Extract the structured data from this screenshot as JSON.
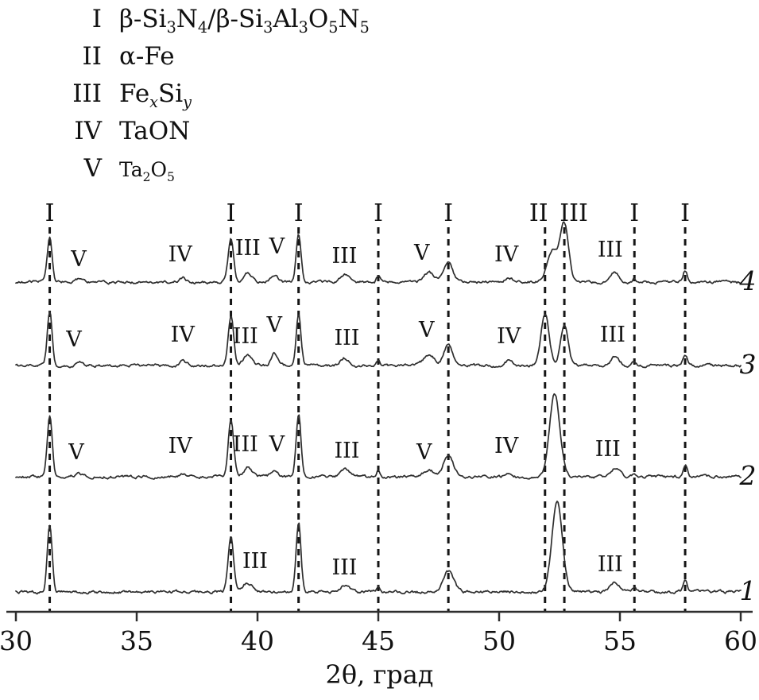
{
  "figure": {
    "legend": [
      {
        "numeral": "I",
        "formula_html": "β-Si<sub>3</sub>N<sub>4</sub>/β-Si<sub>3</sub>Al<sub>3</sub>O<sub>5</sub>N<sub>5</sub>"
      },
      {
        "numeral": "II",
        "formula_html": "α-Fe"
      },
      {
        "numeral": "III",
        "formula_html": "Fe<sub><i>x</i></sub>Si<sub><i>y</i></sub>"
      },
      {
        "numeral": "IV",
        "formula_html": "TaON"
      },
      {
        "numeral": "V",
        "formula_html": "Ta<sub>2</sub>O<sub>5</sub>"
      }
    ]
  },
  "chart_data": {
    "type": "line",
    "title": "",
    "xlabel": "2θ, град",
    "ylabel": "",
    "x_range": [
      30,
      60
    ],
    "x_ticks": [
      30,
      35,
      40,
      45,
      50,
      55,
      60
    ],
    "grid": false,
    "legend_position": "top-left",
    "y_axis_note": "intensity, arb. units; diffractograms 1-4 offset vertically",
    "reference_lines": [
      {
        "x": 31.4,
        "phase": "I",
        "label_dx": 0
      },
      {
        "x": 38.9,
        "phase": "I",
        "label_dx": 0
      },
      {
        "x": 41.7,
        "phase": "I",
        "label_dx": 0
      },
      {
        "x": 45.0,
        "phase": "I",
        "label_dx": 0
      },
      {
        "x": 47.9,
        "phase": "I",
        "label_dx": 0
      },
      {
        "x": 51.9,
        "phase": "II",
        "label_dx": -8
      },
      {
        "x": 52.7,
        "phase": "III",
        "label_dx": 12
      },
      {
        "x": 55.6,
        "phase": "I",
        "label_dx": 0
      },
      {
        "x": 57.7,
        "phase": "I",
        "label_dx": 0
      }
    ],
    "series": [
      {
        "name": "1",
        "offset": 25,
        "peaks": [
          {
            "x": 31.4,
            "h": 85,
            "w": 0.14
          },
          {
            "x": 38.9,
            "h": 70,
            "w": 0.16
          },
          {
            "x": 39.6,
            "h": 12,
            "w": 0.3
          },
          {
            "x": 41.7,
            "h": 88,
            "w": 0.14
          },
          {
            "x": 43.6,
            "h": 9,
            "w": 0.25
          },
          {
            "x": 45.0,
            "h": 8,
            "w": 0.1
          },
          {
            "x": 47.9,
            "h": 26,
            "w": 0.3
          },
          {
            "x": 52.4,
            "h": 112,
            "w": 0.3
          },
          {
            "x": 54.8,
            "h": 12,
            "w": 0.25
          },
          {
            "x": 55.6,
            "h": 5,
            "w": 0.1
          },
          {
            "x": 57.7,
            "h": 16,
            "w": 0.12
          }
        ],
        "annotations": [
          {
            "label": "III",
            "x": 39.9,
            "dy": 30
          },
          {
            "label": "III",
            "x": 43.6,
            "dy": 22
          },
          {
            "label": "III",
            "x": 54.6,
            "dy": 26
          }
        ]
      },
      {
        "name": "2",
        "offset": 170,
        "peaks": [
          {
            "x": 31.4,
            "h": 78,
            "w": 0.14
          },
          {
            "x": 32.6,
            "h": 4,
            "w": 0.2
          },
          {
            "x": 36.9,
            "h": 4,
            "w": 0.2
          },
          {
            "x": 38.9,
            "h": 72,
            "w": 0.16
          },
          {
            "x": 39.6,
            "h": 12,
            "w": 0.25
          },
          {
            "x": 40.7,
            "h": 9,
            "w": 0.2
          },
          {
            "x": 41.7,
            "h": 80,
            "w": 0.14
          },
          {
            "x": 43.6,
            "h": 9,
            "w": 0.25
          },
          {
            "x": 45.0,
            "h": 8,
            "w": 0.1
          },
          {
            "x": 47.1,
            "h": 9,
            "w": 0.3
          },
          {
            "x": 47.9,
            "h": 28,
            "w": 0.28
          },
          {
            "x": 50.4,
            "h": 5,
            "w": 0.2
          },
          {
            "x": 52.3,
            "h": 105,
            "w": 0.3
          },
          {
            "x": 54.8,
            "h": 11,
            "w": 0.25
          },
          {
            "x": 55.6,
            "h": 5,
            "w": 0.1
          },
          {
            "x": 57.7,
            "h": 16,
            "w": 0.12
          }
        ],
        "annotations": [
          {
            "label": "V",
            "x": 32.5,
            "dy": 22
          },
          {
            "label": "IV",
            "x": 36.8,
            "dy": 30
          },
          {
            "label": "III",
            "x": 39.5,
            "dy": 32
          },
          {
            "label": "V",
            "x": 40.8,
            "dy": 32
          },
          {
            "label": "III",
            "x": 43.7,
            "dy": 24
          },
          {
            "label": "V",
            "x": 46.9,
            "dy": 22
          },
          {
            "label": "IV",
            "x": 50.3,
            "dy": 30
          },
          {
            "label": "III",
            "x": 54.5,
            "dy": 26
          }
        ]
      },
      {
        "name": "3",
        "offset": 310,
        "peaks": [
          {
            "x": 31.4,
            "h": 68,
            "w": 0.14
          },
          {
            "x": 32.6,
            "h": 5,
            "w": 0.2
          },
          {
            "x": 36.9,
            "h": 5,
            "w": 0.2
          },
          {
            "x": 38.9,
            "h": 62,
            "w": 0.16
          },
          {
            "x": 39.6,
            "h": 14,
            "w": 0.25
          },
          {
            "x": 40.7,
            "h": 16,
            "w": 0.18
          },
          {
            "x": 41.7,
            "h": 66,
            "w": 0.14
          },
          {
            "x": 43.6,
            "h": 10,
            "w": 0.25
          },
          {
            "x": 45.0,
            "h": 7,
            "w": 0.1
          },
          {
            "x": 47.1,
            "h": 14,
            "w": 0.3
          },
          {
            "x": 47.9,
            "h": 26,
            "w": 0.26
          },
          {
            "x": 50.4,
            "h": 6,
            "w": 0.2
          },
          {
            "x": 51.9,
            "h": 66,
            "w": 0.24
          },
          {
            "x": 52.7,
            "h": 50,
            "w": 0.22
          },
          {
            "x": 54.8,
            "h": 12,
            "w": 0.25
          },
          {
            "x": 55.6,
            "h": 5,
            "w": 0.1
          },
          {
            "x": 57.7,
            "h": 15,
            "w": 0.12
          }
        ],
        "annotations": [
          {
            "label": "V",
            "x": 32.4,
            "dy": 24
          },
          {
            "label": "IV",
            "x": 36.9,
            "dy": 30
          },
          {
            "label": "III",
            "x": 39.5,
            "dy": 28
          },
          {
            "label": "V",
            "x": 40.7,
            "dy": 42
          },
          {
            "label": "III",
            "x": 43.7,
            "dy": 26
          },
          {
            "label": "V",
            "x": 47.0,
            "dy": 36
          },
          {
            "label": "IV",
            "x": 50.4,
            "dy": 28
          },
          {
            "label": "III",
            "x": 54.7,
            "dy": 30
          }
        ]
      },
      {
        "name": "4",
        "offset": 415,
        "peaks": [
          {
            "x": 31.4,
            "h": 56,
            "w": 0.14
          },
          {
            "x": 32.6,
            "h": 4,
            "w": 0.2
          },
          {
            "x": 36.9,
            "h": 5,
            "w": 0.2
          },
          {
            "x": 38.9,
            "h": 54,
            "w": 0.16
          },
          {
            "x": 39.6,
            "h": 12,
            "w": 0.25
          },
          {
            "x": 40.7,
            "h": 10,
            "w": 0.2
          },
          {
            "x": 41.7,
            "h": 60,
            "w": 0.14
          },
          {
            "x": 43.6,
            "h": 9,
            "w": 0.25
          },
          {
            "x": 45.0,
            "h": 8,
            "w": 0.1
          },
          {
            "x": 47.1,
            "h": 12,
            "w": 0.3
          },
          {
            "x": 47.9,
            "h": 24,
            "w": 0.26
          },
          {
            "x": 50.4,
            "h": 6,
            "w": 0.2
          },
          {
            "x": 52.2,
            "h": 40,
            "w": 0.3
          },
          {
            "x": 52.7,
            "h": 72,
            "w": 0.25
          },
          {
            "x": 54.8,
            "h": 12,
            "w": 0.25
          },
          {
            "x": 55.6,
            "h": 5,
            "w": 0.1
          },
          {
            "x": 57.7,
            "h": 15,
            "w": 0.12
          }
        ],
        "annotations": [
          {
            "label": "V",
            "x": 32.6,
            "dy": 20
          },
          {
            "label": "IV",
            "x": 36.8,
            "dy": 26
          },
          {
            "label": "III",
            "x": 39.6,
            "dy": 34
          },
          {
            "label": "V",
            "x": 40.8,
            "dy": 36
          },
          {
            "label": "III",
            "x": 43.6,
            "dy": 24
          },
          {
            "label": "V",
            "x": 46.8,
            "dy": 28
          },
          {
            "label": "IV",
            "x": 50.3,
            "dy": 26
          },
          {
            "label": "III",
            "x": 54.6,
            "dy": 32
          }
        ]
      }
    ]
  }
}
